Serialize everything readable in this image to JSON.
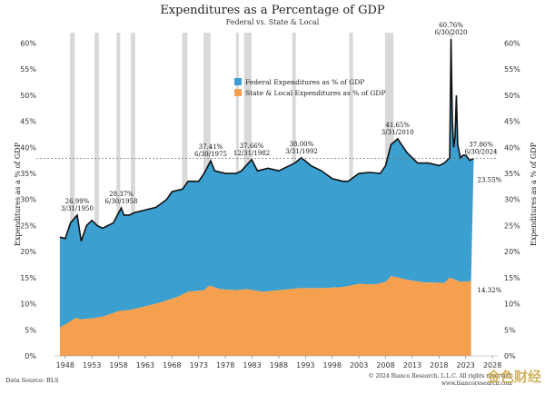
{
  "title": "Expenditures as a Percentage of GDP",
  "subtitle": "Federal vs. State & Local",
  "data_source": "Data Source: BLS",
  "copyright": "© 2024 Bianco Research, L.L.C. All rights reserved.",
  "website": "www.biancoresearch.com",
  "watermark": "金色财经",
  "colors": {
    "federal": "#3b9fcf",
    "state": "#f5a04f",
    "recession": "#d2d2d2",
    "line": "#111111",
    "ref": "#777777"
  },
  "chart_data": {
    "type": "area",
    "ylabel": "Expenditures as a % of GDP",
    "ylim": [
      0,
      62
    ],
    "yticks": [
      "0%",
      "5%",
      "10%",
      "15%",
      "20%",
      "25%",
      "30%",
      "35%",
      "40%",
      "45%",
      "50%",
      "55%",
      "60%"
    ],
    "xticks": [
      "1948",
      "1953",
      "1958",
      "1963",
      "1968",
      "1973",
      "1978",
      "1983",
      "1988",
      "1993",
      "1998",
      "2003",
      "2008",
      "2013",
      "2018",
      "2023",
      "2028"
    ],
    "xlim": [
      1946,
      2029
    ],
    "reference_line": 37.86,
    "legend": [
      "Federal Expenditures as % of GDP",
      "State & Local Expenditures as % of GDP"
    ],
    "series": [
      {
        "name": "State & Local Expenditures as % of GDP",
        "x": [
          1947,
          1948,
          1950,
          1951,
          1953,
          1955,
          1957,
          1958,
          1960,
          1963,
          1966,
          1969,
          1971,
          1974,
          1975,
          1977,
          1980,
          1982,
          1985,
          1990,
          1992,
          1996,
          2000,
          2003,
          2006,
          2008,
          2009,
          2010,
          2012,
          2015,
          2019,
          2020,
          2021,
          2022,
          2024
        ],
        "values": [
          5.5,
          6.0,
          7.3,
          7.0,
          7.2,
          7.5,
          8.2,
          8.6,
          8.8,
          9.5,
          10.3,
          11.3,
          12.3,
          12.6,
          13.5,
          12.8,
          12.6,
          12.8,
          12.3,
          12.8,
          13.0,
          13.0,
          13.2,
          13.8,
          13.7,
          14.2,
          15.3,
          15.1,
          14.6,
          14.1,
          14.0,
          15.0,
          14.6,
          14.2,
          14.32
        ]
      },
      {
        "name": "Federal Expenditures as % of GDP",
        "x": [
          1947,
          1948,
          1949,
          1950.25,
          1951,
          1952,
          1953,
          1954,
          1955,
          1956,
          1957,
          1958.5,
          1959,
          1960,
          1961,
          1963,
          1965,
          1967,
          1968,
          1970,
          1971,
          1973,
          1974,
          1975.25,
          1976,
          1978,
          1980,
          1981,
          1982.92,
          1984,
          1986,
          1988,
          1990,
          1991,
          1992.25,
          1994,
          1996,
          1998,
          2000,
          2001,
          2003,
          2005,
          2007,
          2008,
          2009,
          2010.25,
          2011,
          2012,
          2014,
          2016,
          2018,
          2019,
          2020.0,
          2020.25,
          2020.5,
          2020.75,
          2021.0,
          2021.25,
          2021.5,
          2022,
          2022.5,
          2023,
          2023.75,
          2024.5
        ],
        "values": [
          22.8,
          22.5,
          25.5,
          26.99,
          22.0,
          25.0,
          26.0,
          25.0,
          24.5,
          25.0,
          25.5,
          28.37,
          27.0,
          27.0,
          27.5,
          28.0,
          28.5,
          30.0,
          31.5,
          32.0,
          33.5,
          33.5,
          35.0,
          37.41,
          35.5,
          35.0,
          35.0,
          35.5,
          37.66,
          35.5,
          36.0,
          35.5,
          36.5,
          37.0,
          38.0,
          36.5,
          35.5,
          34.0,
          33.5,
          33.5,
          35.0,
          35.2,
          35.0,
          36.5,
          40.5,
          41.65,
          40.5,
          39.0,
          37.0,
          37.0,
          36.5,
          37.0,
          38.0,
          60.76,
          45.0,
          40.0,
          42.0,
          50.0,
          40.5,
          38.0,
          38.5,
          38.5,
          37.5,
          37.86
        ]
      }
    ],
    "recessions": [
      [
        1948.9,
        1949.8
      ],
      [
        1953.5,
        1954.3
      ],
      [
        1957.6,
        1958.3
      ],
      [
        1960.3,
        1961.1
      ],
      [
        1969.9,
        1970.9
      ],
      [
        1973.9,
        1975.2
      ],
      [
        1980.0,
        1980.5
      ],
      [
        1981.5,
        1982.9
      ],
      [
        1990.5,
        1991.2
      ],
      [
        2001.2,
        2001.9
      ],
      [
        2007.9,
        2009.5
      ],
      [
        2020.1,
        2020.4
      ]
    ],
    "annotations": [
      {
        "label": "26.99%",
        "date": "3/31/1950"
      },
      {
        "label": "28.37%",
        "date": "6/30/1958"
      },
      {
        "label": "37.41%",
        "date": "6/30/1975"
      },
      {
        "label": "37.66%",
        "date": "12/31/1982"
      },
      {
        "label": "38.00%",
        "date": "3/31/1992"
      },
      {
        "label": "41.65%",
        "date": "3/31/2010"
      },
      {
        "label": "60.76%",
        "date": "6/30/2020"
      },
      {
        "label": "37.86%",
        "date": "6/30/2024"
      }
    ],
    "end_labels": {
      "federal": "23.55%",
      "state": "14.32%"
    }
  }
}
